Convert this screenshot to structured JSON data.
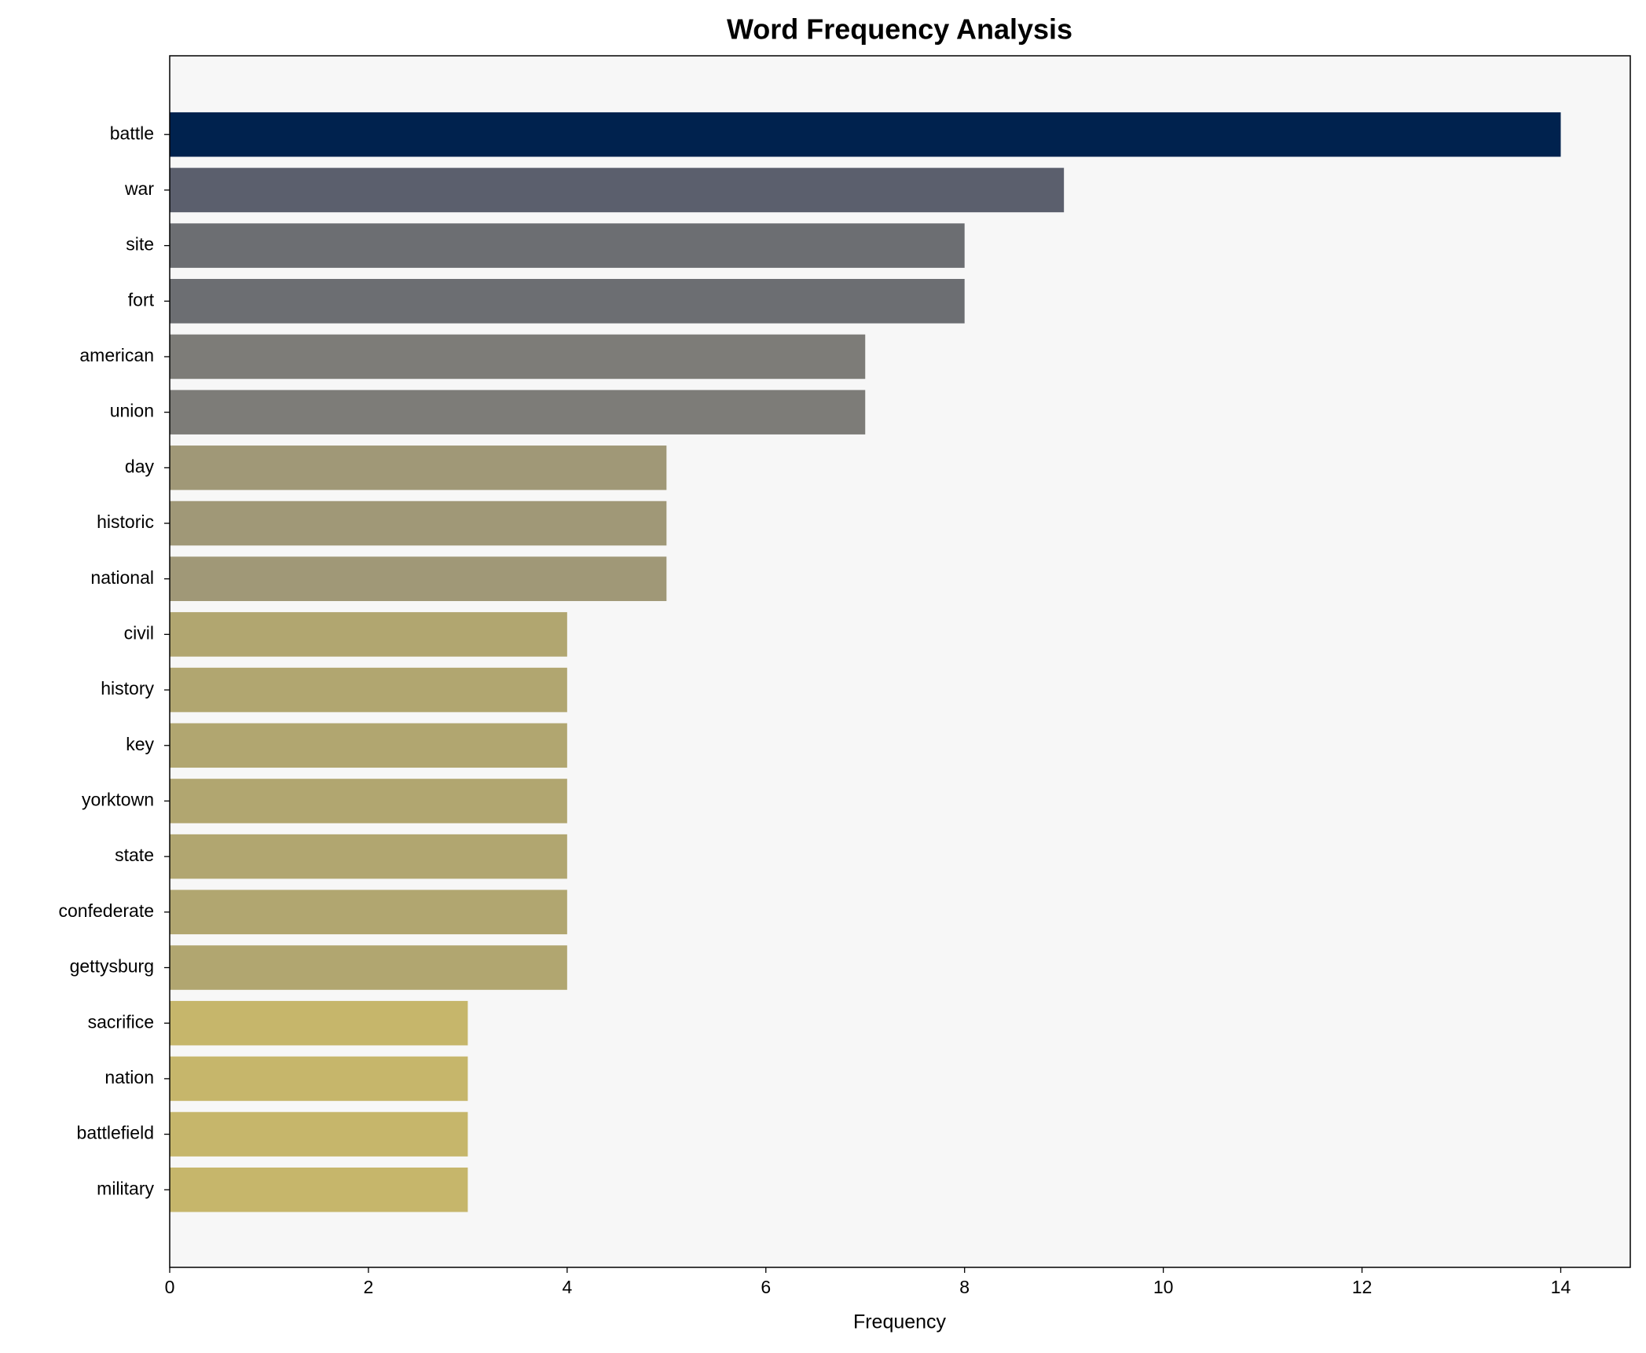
{
  "chart_data": {
    "type": "barh",
    "title": "Word Frequency Analysis",
    "x_label": "Frequency",
    "categories": [
      "battle",
      "war",
      "site",
      "fort",
      "american",
      "union",
      "day",
      "historic",
      "national",
      "civil",
      "history",
      "key",
      "yorktown",
      "state",
      "confederate",
      "gettysburg",
      "sacrifice",
      "nation",
      "battlefield",
      "military"
    ],
    "values": [
      14,
      9,
      8,
      8,
      7,
      7,
      5,
      5,
      5,
      4,
      4,
      4,
      4,
      4,
      4,
      4,
      3,
      3,
      3,
      3
    ],
    "colors": [
      "#00224e",
      "#5b5f6d",
      "#6c6e72",
      "#6c6e72",
      "#7d7c78",
      "#7d7c78",
      "#a09877",
      "#a09877",
      "#a09877",
      "#b1a670",
      "#b1a670",
      "#b1a670",
      "#b1a670",
      "#b1a670",
      "#b1a670",
      "#b1a670",
      "#c6b66b",
      "#c6b66b",
      "#c6b66b",
      "#c6b66b"
    ],
    "xlim": [
      0,
      14.7
    ],
    "xticks": [
      0,
      2,
      4,
      6,
      8,
      10,
      12,
      14
    ],
    "grid": false
  }
}
